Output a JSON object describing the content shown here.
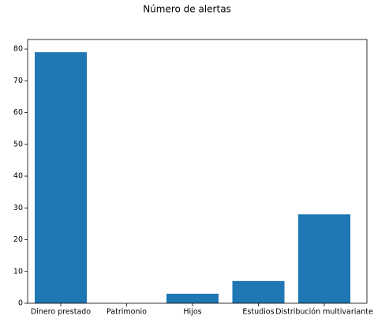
{
  "chart_data": {
    "type": "bar",
    "title": "Número de alertas",
    "categories": [
      "Dinero prestado",
      "Patrimonio",
      "Hijos",
      "Estudios",
      "Distribución multivariante"
    ],
    "values": [
      79,
      0,
      3,
      7,
      28
    ],
    "color": "#1f77b4",
    "ylim": [
      0,
      83
    ],
    "yticks": [
      0,
      10,
      20,
      30,
      40,
      50,
      60,
      70,
      80
    ],
    "grid": false
  }
}
